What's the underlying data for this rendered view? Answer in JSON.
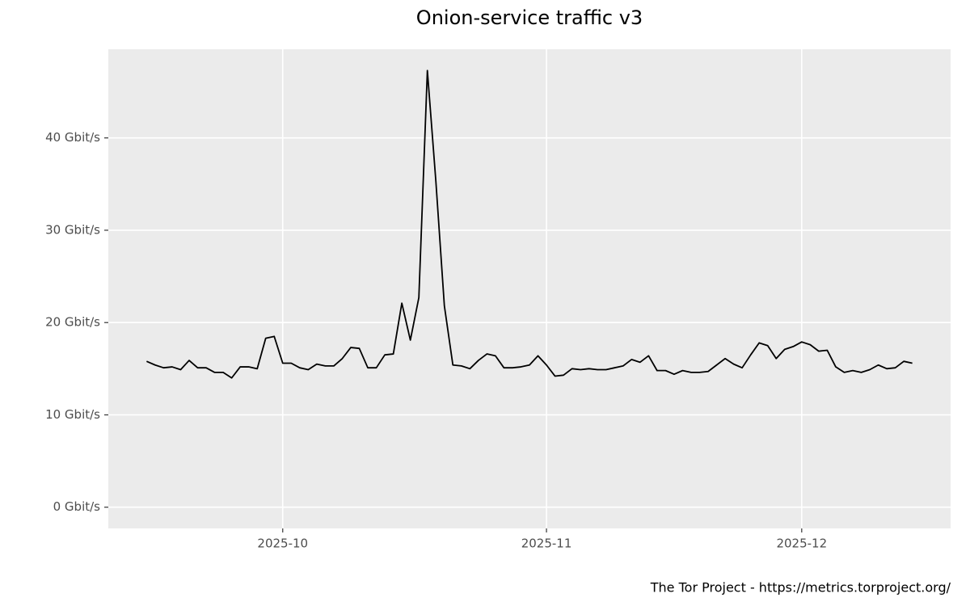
{
  "chart_data": {
    "type": "line",
    "title": "Onion-service traffic v3",
    "caption": "The Tor Project - https://metrics.torproject.org/",
    "values": [
      15.8,
      15.4,
      15.1,
      15.2,
      14.9,
      15.9,
      15.1,
      15.1,
      14.6,
      14.6,
      14.0,
      15.2,
      15.2,
      15.0,
      18.3,
      18.5,
      15.6,
      15.6,
      15.1,
      14.9,
      15.5,
      15.3,
      15.3,
      16.1,
      17.3,
      17.2,
      15.1,
      15.1,
      16.5,
      16.6,
      22.1,
      18.1,
      22.7,
      47.3,
      35.3,
      21.8,
      15.4,
      15.3,
      15.0,
      15.9,
      16.6,
      16.4,
      15.1,
      15.1,
      15.2,
      15.4,
      16.4,
      15.4,
      14.2,
      14.3,
      15.0,
      14.9,
      15.0,
      14.9,
      14.9,
      15.1,
      15.3,
      16.0,
      15.7,
      16.4,
      14.8,
      14.8,
      14.4,
      14.8,
      14.6,
      14.6,
      14.7,
      15.4,
      16.1,
      15.5,
      15.1,
      16.5,
      17.8,
      17.5,
      16.1,
      17.1,
      17.4,
      17.9,
      17.6,
      16.9,
      17.0,
      15.2,
      14.6,
      14.8,
      14.6,
      14.9,
      15.4,
      15.0,
      15.1,
      15.8,
      15.6
    ],
    "color": "#000000",
    "xlim": [
      -4.5,
      94.5
    ],
    "xticks": [
      {
        "value": 16,
        "label": "2025-10"
      },
      {
        "value": 47,
        "label": "2025-11"
      },
      {
        "value": 77,
        "label": "2025-12"
      }
    ],
    "ylim": [
      -2.3,
      49.6
    ],
    "yticks": [
      {
        "value": 0,
        "label": "0 Gbit/s"
      },
      {
        "value": 10,
        "label": "10 Gbit/s"
      },
      {
        "value": 20,
        "label": "20 Gbit/s"
      },
      {
        "value": 30,
        "label": "30 Gbit/s"
      },
      {
        "value": 40,
        "label": "40 Gbit/s"
      }
    ],
    "grid": true
  }
}
